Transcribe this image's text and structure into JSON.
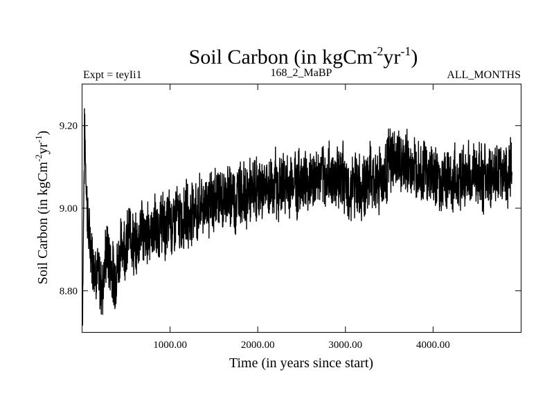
{
  "chart_data": {
    "type": "line",
    "title": "Soil Carbon (in kgCm",
    "title_sup1": "-2",
    "title_mid": "yr",
    "title_sup2": "-1",
    "title_end": ")",
    "subtitle_left": "Expt = teyIi1",
    "subtitle_center": "168_2_MaBP",
    "subtitle_right": "ALL_MONTHS",
    "xlabel": "Time (in years since start)",
    "ylabel": "Soil Carbon (in kgCm",
    "ylabel_sup1": "-2",
    "ylabel_mid": "yr",
    "ylabel_sup2": "-1",
    "ylabel_end": ")",
    "xlim": [
      0,
      5000
    ],
    "ylim": [
      8.7,
      9.3
    ],
    "x_ticks": [
      1000,
      2000,
      3000,
      4000
    ],
    "x_tick_labels": [
      "1000.00",
      "2000.00",
      "3000.00",
      "4000.00"
    ],
    "y_ticks": [
      8.8,
      9.0,
      9.2
    ],
    "y_tick_labels": [
      "8.80",
      "9.00",
      "9.20"
    ],
    "series": [
      {
        "name": "Soil Carbon",
        "color": "#000000",
        "x_start": 0,
        "x_step": 25,
        "values": [
          8.74,
          9.2,
          9.02,
          8.93,
          8.91,
          8.87,
          8.86,
          8.84,
          8.82,
          8.8,
          8.85,
          8.9,
          8.88,
          8.86,
          8.84,
          8.83,
          8.86,
          8.89,
          8.91,
          8.92,
          8.9,
          8.93,
          8.95,
          8.92,
          8.9,
          8.91,
          8.94,
          8.97,
          8.93,
          8.92,
          8.95,
          8.95,
          8.94,
          8.96,
          8.93,
          8.95,
          8.97,
          8.96,
          8.94,
          8.97,
          8.98,
          8.95,
          8.97,
          8.99,
          8.97,
          8.96,
          8.98,
          9.0,
          8.98,
          8.97,
          9.0,
          9.01,
          8.99,
          8.98,
          9.02,
          9.0,
          9.01,
          9.03,
          9.0,
          9.02,
          9.01,
          9.03,
          9.04,
          9.02,
          9.01,
          9.03,
          9.05,
          9.02,
          9.04,
          9.03,
          9.01,
          9.04,
          9.05,
          9.03,
          9.04,
          9.02,
          9.05,
          9.03,
          9.04,
          9.06,
          9.03,
          9.05,
          9.04,
          9.06,
          9.05,
          9.03,
          9.06,
          9.05,
          9.07,
          9.04,
          9.06,
          9.05,
          9.07,
          9.06,
          9.04,
          9.07,
          9.06,
          9.08,
          9.05,
          9.07,
          9.06,
          9.08,
          9.07,
          9.05,
          9.08,
          9.07,
          9.06,
          9.08,
          9.07,
          9.09,
          9.06,
          9.08,
          9.07,
          9.09,
          9.08,
          9.06,
          9.09,
          9.08,
          9.07,
          9.09,
          9.05,
          9.02,
          9.04,
          9.06,
          9.05,
          9.07,
          9.06,
          9.04,
          9.07,
          9.05,
          9.06,
          9.08,
          9.07,
          9.05,
          9.08,
          9.06,
          9.09,
          9.07,
          9.08,
          9.1,
          9.12,
          9.11,
          9.13,
          9.1,
          9.12,
          9.11,
          9.09,
          9.1,
          9.12,
          9.1,
          9.08,
          9.11,
          9.09,
          9.12,
          9.1,
          9.08,
          9.11,
          9.09,
          9.07,
          9.1,
          9.08,
          9.06,
          9.09,
          9.07,
          9.05,
          9.08,
          9.06,
          9.09,
          9.07,
          9.05,
          9.08,
          9.06,
          9.09,
          9.07,
          9.08,
          9.06,
          9.09,
          9.07,
          9.08,
          9.1,
          9.07,
          9.09,
          9.08,
          9.06,
          9.09,
          9.07,
          9.08,
          9.06,
          9.09,
          9.08,
          9.07,
          9.09,
          9.08,
          9.1,
          9.07,
          9.09,
          9.08
        ]
      }
    ]
  }
}
